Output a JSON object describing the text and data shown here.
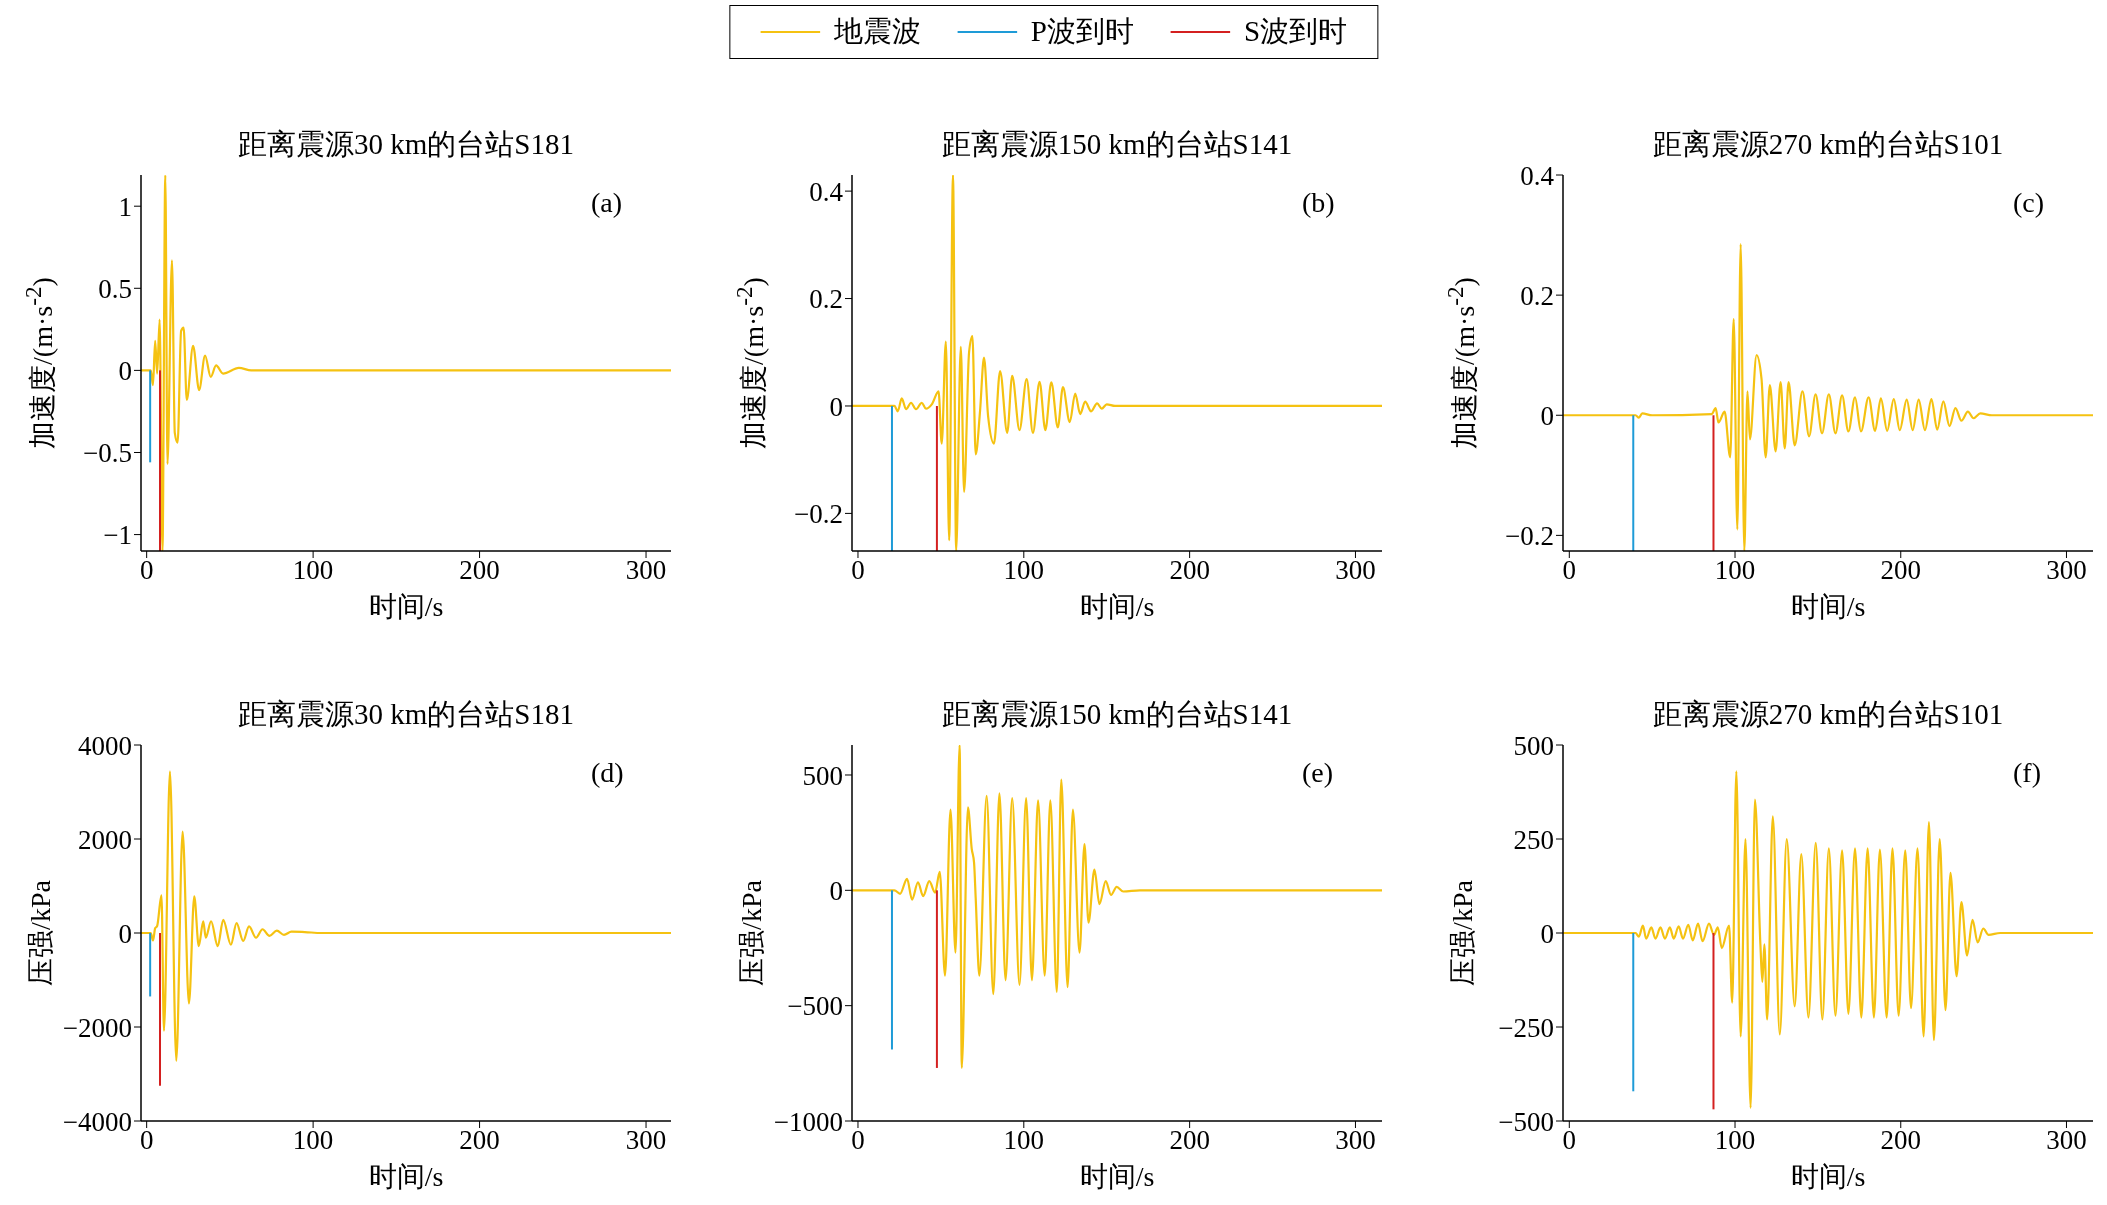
{
  "chart_data": [
    {
      "type": "line",
      "title": "距离震源30 km的台站S181",
      "xlabel": "时间/s",
      "ylabel": "加速度/(m·s$^{-2}$)",
      "annotations": [
        "(a)"
      ],
      "legend": "top",
      "xlim": [
        -3.4,
        315
      ],
      "xticks": [
        0,
        100,
        200,
        300
      ],
      "ylim": [
        -1.1,
        1.19
      ],
      "yticks": [
        1,
        0.5,
        0,
        {
          "value": -0.5,
          "label": "−0.5"
        },
        {
          "value": -1,
          "label": "−1"
        }
      ],
      "series": [
        {
          "name": "地震波",
          "color": "#f5c211",
          "x": [
            -3.4,
            2.5,
            3.8,
            5.1,
            6.3,
            7.8,
            9.5,
            11.2,
            12.5,
            15.2,
            16.9,
            18.6,
            20.7,
            22.2,
            24.1,
            27.9,
            31.5,
            35.1,
            38.5,
            41.7,
            45.9,
            55.4,
            62.8,
            315
          ],
          "values": [
            0,
            0,
            -0.09,
            0.18,
            -0.02,
            0.31,
            -1.1,
            1.19,
            -0.57,
            0.67,
            -0.38,
            -0.44,
            0.24,
            0.26,
            -0.18,
            0.15,
            -0.12,
            0.09,
            -0.04,
            0.03,
            -0.02,
            0.015,
            0,
            0
          ]
        },
        {
          "name": "P波到时",
          "color": "#1e9bd7",
          "x": [
            2.1,
            2.1
          ],
          "values": [
            0,
            -0.56
          ]
        },
        {
          "name": "S波到时",
          "color": "#d42020",
          "x": [
            8,
            8
          ],
          "values": [
            0,
            -1.1
          ]
        }
      ]
    },
    {
      "type": "line",
      "title": "距离震源150 km的台站S141",
      "xlabel": "时间/s",
      "ylabel": "加速度/(m·s$^{-2}$)",
      "annotations": [
        "(b)"
      ],
      "xlim": [
        -3.6,
        316
      ],
      "xticks": [
        0,
        100,
        200,
        300
      ],
      "ylim": [
        -0.27,
        0.43
      ],
      "yticks": [
        0.4,
        0.2,
        0,
        {
          "value": -0.2,
          "label": "−0.2"
        }
      ],
      "series": [
        {
          "color": "#f5c211",
          "x": [
            -3.6,
            22,
            24,
            26.4,
            29,
            32,
            35,
            38.5,
            41,
            44.5,
            48.6,
            50.5,
            53,
            55,
            57.3,
            59.2,
            62,
            64,
            67,
            69,
            71,
            73.6,
            76,
            78.5,
            82,
            85.7,
            90,
            93,
            97.4,
            101.7,
            105.5,
            109.5,
            113,
            116.6,
            120.5,
            123.6,
            127.7,
            131,
            134,
            137,
            140.6,
            144.2,
            147,
            150,
            155,
            316
          ],
          "values": [
            0,
            0,
            -0.01,
            0.014,
            -0.006,
            0.006,
            -0.006,
            0.006,
            -0.005,
            0.003,
            0.027,
            -0.07,
            0.12,
            -0.25,
            0.43,
            -0.27,
            0.11,
            -0.16,
            0.1,
            0.13,
            -0.09,
            -0.01,
            0.09,
            -0.02,
            -0.07,
            0.065,
            -0.05,
            0.056,
            -0.045,
            0.05,
            -0.05,
            0.045,
            -0.045,
            0.044,
            -0.04,
            0.035,
            -0.03,
            0.023,
            -0.015,
            0.008,
            -0.01,
            0.005,
            -0.005,
            0.003,
            0,
            0
          ]
        },
        {
          "color": "#1e9bd7",
          "x": [
            20.5,
            20.5
          ],
          "values": [
            0,
            -0.27
          ]
        },
        {
          "color": "#d42020",
          "x": [
            47.6,
            47.6
          ],
          "values": [
            0,
            -0.27
          ]
        }
      ]
    },
    {
      "type": "line",
      "title": "距离震源270 km的台站S101",
      "xlabel": "时间/s",
      "ylabel": "加速度/(m·s$^{-2}$)",
      "annotations": [
        "(c)"
      ],
      "xlim": [
        -3.8,
        316
      ],
      "xticks": [
        0,
        100,
        200,
        300
      ],
      "ylim": [
        -0.226,
        0.4
      ],
      "yticks": [
        0.4,
        0.2,
        0,
        {
          "value": -0.2,
          "label": "−0.2"
        }
      ],
      "series": [
        {
          "color": "#f5c211",
          "x": [
            -3.8,
            40,
            42,
            44,
            50,
            86,
            88.3,
            90,
            93.7,
            97.1,
            99.2,
            101.4,
            103.4,
            105.6,
            107.5,
            109,
            113,
            116,
            118.5,
            121,
            124.5,
            127.5,
            130,
            132.3,
            136,
            140.7,
            144.7,
            148.6,
            152.5,
            156.6,
            160.6,
            164.6,
            168.4,
            172.4,
            176,
            180.6,
            184.5,
            188,
            191.8,
            195.8,
            199.4,
            203.6,
            207.2,
            210.8,
            214.6,
            218.5,
            222,
            225.7,
            229.4,
            233,
            236.6,
            240.5,
            244,
            248,
            255,
            316
          ],
          "values": [
            0,
            0,
            -0.004,
            0.003,
            0,
            0.002,
            0.012,
            -0.012,
            0.006,
            -0.07,
            0.16,
            -0.19,
            0.285,
            -0.226,
            0.04,
            -0.04,
            0.1,
            0.06,
            -0.07,
            0.05,
            -0.06,
            0.055,
            -0.055,
            0.055,
            -0.05,
            0.04,
            -0.035,
            0.035,
            -0.03,
            0.035,
            -0.03,
            0.033,
            -0.027,
            0.03,
            -0.027,
            0.03,
            -0.026,
            0.028,
            -0.026,
            0.027,
            -0.025,
            0.026,
            -0.025,
            0.026,
            -0.025,
            0.027,
            -0.024,
            0.023,
            -0.018,
            0.012,
            -0.009,
            0.006,
            -0.005,
            0.003,
            0,
            0
          ]
        },
        {
          "color": "#1e9bd7",
          "x": [
            38.6,
            38.6
          ],
          "values": [
            0,
            -0.226
          ]
        },
        {
          "color": "#d42020",
          "x": [
            87,
            87
          ],
          "values": [
            0,
            -0.226
          ]
        }
      ]
    },
    {
      "type": "line",
      "title": "距离震源30 km的台站S181",
      "xlabel": "时间/s",
      "ylabel": "压强/kPa",
      "annotations": [
        "(d)"
      ],
      "xlim": [
        -3.4,
        315
      ],
      "xticks": [
        0,
        100,
        200,
        300
      ],
      "ylim": [
        -4000,
        4000
      ],
      "yticks": [
        4000,
        2000,
        0,
        {
          "value": -2000,
          "label": "−2000"
        },
        {
          "value": -4000,
          "label": "−4000"
        }
      ],
      "series": [
        {
          "color": "#f5c211",
          "x": [
            -3.4,
            2.5,
            3.8,
            5.1,
            6.3,
            8.9,
            10.4,
            14,
            17.8,
            21.6,
            25.4,
            28.6,
            31.3,
            34,
            35.5,
            38.7,
            42.7,
            46,
            50.6,
            54,
            58,
            61.5,
            65.7,
            69.6,
            73.8,
            78.2,
            82.5,
            87,
            95,
            105,
            315
          ],
          "values": [
            0,
            0,
            -160,
            100,
            150,
            800,
            -2080,
            3440,
            -2720,
            2160,
            -1500,
            780,
            -280,
            250,
            -100,
            250,
            -280,
            280,
            -250,
            210,
            -170,
            140,
            -100,
            80,
            -60,
            50,
            -40,
            30,
            20,
            0,
            0
          ]
        },
        {
          "color": "#1e9bd7",
          "x": [
            2.1,
            2.1
          ],
          "values": [
            0,
            -1350
          ]
        },
        {
          "color": "#d42020",
          "x": [
            8,
            8
          ],
          "values": [
            0,
            -3250
          ]
        }
      ]
    },
    {
      "type": "line",
      "title": "距离震源150 km的台站S141",
      "xlabel": "时间/s",
      "ylabel": "压强/kPa",
      "annotations": [
        "(e)"
      ],
      "xlim": [
        -3.6,
        316
      ],
      "xticks": [
        0,
        100,
        200,
        300
      ],
      "ylim": [
        -1000,
        630
      ],
      "yticks": [
        500,
        0,
        {
          "value": -500,
          "label": "−500"
        },
        {
          "value": -1000,
          "label": "−1000"
        }
      ],
      "series": [
        {
          "color": "#f5c211",
          "x": [
            -3.6,
            22,
            25.4,
            29.6,
            32.6,
            36.2,
            39.3,
            43,
            46.5,
            49.3,
            52.5,
            55.8,
            58.8,
            61.3,
            62.6,
            66.3,
            68.6,
            70,
            71,
            73.2,
            77.6,
            81.6,
            85.3,
            89,
            93,
            97.4,
            101.4,
            104.9,
            108.6,
            112.6,
            116,
            119.9,
            122.6,
            126.4,
            129.6,
            133.6,
            136.6,
            139,
            142.6,
            145.6,
            149.4,
            152.6,
            156,
            160,
            170,
            316
          ],
          "values": [
            0,
            0,
            -15,
            50,
            -40,
            35,
            -25,
            40,
            -10,
            80,
            -370,
            350,
            -270,
            630,
            -770,
            360,
            180,
            120,
            -35,
            -370,
            410,
            -450,
            420,
            -390,
            400,
            -410,
            400,
            -390,
            390,
            -370,
            390,
            -440,
            480,
            -420,
            350,
            -270,
            200,
            -140,
            90,
            -60,
            40,
            -20,
            15,
            -5,
            0,
            0
          ]
        },
        {
          "color": "#1e9bd7",
          "x": [
            20.5,
            20.5
          ],
          "values": [
            0,
            -690
          ]
        },
        {
          "color": "#d42020",
          "x": [
            47.6,
            47.6
          ],
          "values": [
            0,
            -770
          ]
        }
      ]
    },
    {
      "type": "line",
      "title": "距离震源270 km的台站S101",
      "xlabel": "时间/s",
      "ylabel": "压强/kPa",
      "annotations": [
        "(f)"
      ],
      "xlim": [
        -3.8,
        316
      ],
      "xticks": [
        0,
        100,
        200,
        300
      ],
      "ylim": [
        -500,
        500
      ],
      "yticks": [
        500,
        250,
        0,
        {
          "value": -250,
          "label": "−250"
        },
        {
          "value": -500,
          "label": "−500"
        }
      ],
      "series": [
        {
          "color": "#f5c211",
          "x": [
            -3.8,
            40,
            42,
            44.4,
            46.4,
            49.5,
            52,
            55,
            57.7,
            60.7,
            63,
            66,
            68.6,
            71.8,
            74.5,
            77.7,
            80.4,
            84.3,
            87.3,
            89.6,
            92,
            96.4,
            98.3,
            100.8,
            103.4,
            106.3,
            109.4,
            112,
            115.3,
            116.5,
            117.7,
            119.4,
            122.8,
            127,
            131.2,
            136,
            140,
            144.3,
            148.7,
            152.7,
            156.6,
            160.6,
            164.6,
            168.4,
            172.4,
            176.2,
            180,
            183.8,
            187.4,
            191.5,
            195,
            198.7,
            202.7,
            206.2,
            210.1,
            213.8,
            217,
            220,
            223.5,
            227,
            230,
            233.7,
            236.6,
            240,
            243.3,
            246.4,
            249.8,
            253,
            260,
            316
          ],
          "values": [
            0,
            0,
            -10,
            20,
            -15,
            15,
            -15,
            15,
            -15,
            15,
            -15,
            18,
            -15,
            22,
            -20,
            25,
            -22,
            25,
            -5,
            15,
            -40,
            20,
            -185,
            430,
            -275,
            250,
            -465,
            355,
            -30,
            -130,
            -30,
            -230,
            310,
            -270,
            250,
            -195,
            210,
            -225,
            240,
            -230,
            225,
            -220,
            220,
            -215,
            225,
            -225,
            225,
            -225,
            222,
            -225,
            225,
            -220,
            220,
            -200,
            225,
            -275,
            295,
            -285,
            250,
            -205,
            160,
            -115,
            82,
            -60,
            35,
            -25,
            12,
            -5,
            0,
            0
          ]
        },
        {
          "color": "#1e9bd7",
          "x": [
            38.6,
            38.6
          ],
          "values": [
            0,
            -421
          ]
        },
        {
          "color": "#d42020",
          "x": [
            87,
            87
          ],
          "values": [
            0,
            -469
          ]
        }
      ]
    }
  ]
}
